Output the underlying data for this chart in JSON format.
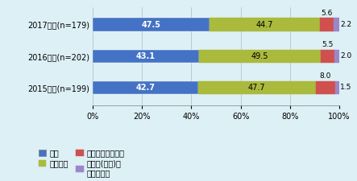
{
  "years": [
    "2017年度(n=179)",
    "2016年度(n=202)",
    "2015年度(n=199)"
  ],
  "categories": [
    "拡大",
    "現状維持",
    "縮小、移転・撃退",
    "第三国(地域)へ\n移転・撃退"
  ],
  "values": [
    [
      47.5,
      44.7,
      5.6,
      2.2
    ],
    [
      43.1,
      49.5,
      5.5,
      2.0
    ],
    [
      42.7,
      47.7,
      8.0,
      1.5
    ]
  ],
  "colors": [
    "#4472C4",
    "#AABA3C",
    "#D05050",
    "#9B87C8"
  ],
  "hatch_patterns": [
    "",
    "//",
    "|||",
    "...."
  ],
  "hatch_colors": [
    "white",
    "#AABA3C",
    "#D05050",
    "#9B87C8"
  ],
  "bg_color": "#DCF0F5",
  "bar_height": 0.42,
  "label_fontsize": 7.0,
  "tick_fontsize": 7.0,
  "legend_fontsize": 7.0
}
